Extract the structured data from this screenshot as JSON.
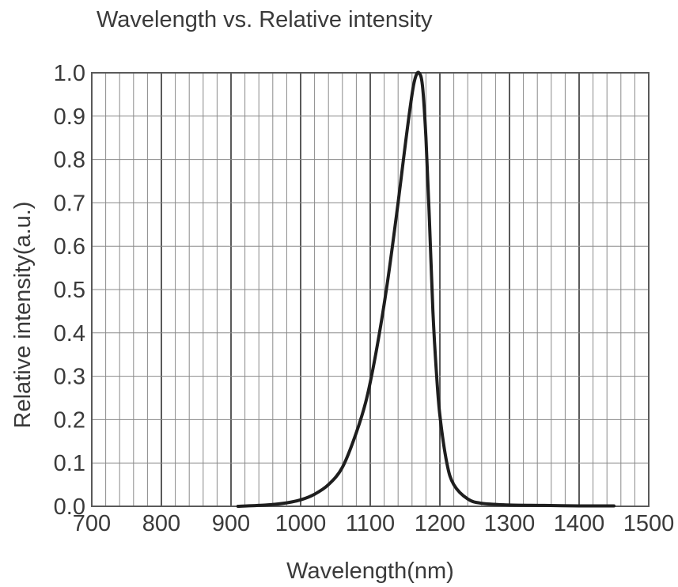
{
  "chart_data": {
    "type": "line",
    "title": "Wavelength vs. Relative intensity",
    "xlabel": "Wavelength(nm)",
    "ylabel": "Relative intensity(a.u.)",
    "xlim": [
      700,
      1500
    ],
    "ylim": [
      0.0,
      1.0
    ],
    "x_ticks": [
      "700",
      "800",
      "900",
      "1000",
      "1100",
      "1200",
      "1300",
      "1400",
      "1500"
    ],
    "y_ticks": [
      "0.0",
      "0.1",
      "0.2",
      "0.3",
      "0.4",
      "0.5",
      "0.6",
      "0.7",
      "0.8",
      "0.9",
      "1.0"
    ],
    "grid": true,
    "legend": "none",
    "series": [
      {
        "color": "#1e1e1e",
        "x": [
          910,
          950,
          980,
          1000,
          1020,
          1040,
          1060,
          1080,
          1095,
          1110,
          1125,
          1140,
          1150,
          1160,
          1165,
          1170,
          1175,
          1180,
          1185,
          1190,
          1195,
          1200,
          1210,
          1220,
          1240,
          1260,
          1300,
          1350,
          1400,
          1450
        ],
        "values": [
          0.0,
          0.003,
          0.008,
          0.015,
          0.028,
          0.05,
          0.09,
          0.17,
          0.25,
          0.37,
          0.52,
          0.7,
          0.83,
          0.95,
          0.99,
          1.0,
          0.97,
          0.85,
          0.66,
          0.45,
          0.31,
          0.21,
          0.1,
          0.05,
          0.017,
          0.007,
          0.003,
          0.002,
          0.001,
          0.001
        ]
      }
    ]
  }
}
